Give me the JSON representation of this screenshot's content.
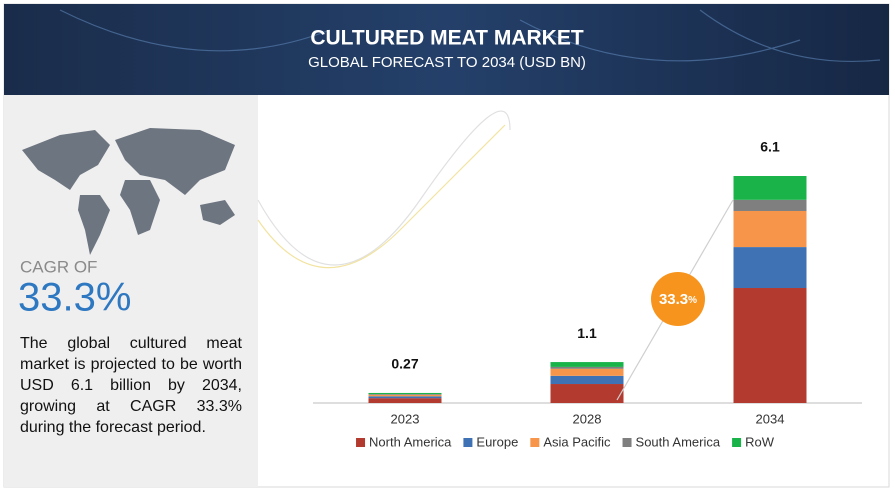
{
  "header": {
    "title": "CULTURED MEAT MARKET",
    "subtitle": "GLOBAL FORECAST TO 2034 (USD BN)"
  },
  "summary": {
    "cagr_label": "CAGR OF",
    "cagr_value": "33.3%",
    "text": "The global cultured meat market is projected to be worth USD 6.1 billion by 2034, growing at CAGR 33.3% during the forecast period."
  },
  "chart_data": {
    "type": "bar",
    "stacked": true,
    "categories": [
      "2023",
      "2028",
      "2034"
    ],
    "totals": [
      0.27,
      1.1,
      6.1
    ],
    "growth_bubble": {
      "value": "33.3",
      "unit": "%"
    },
    "series": [
      {
        "name": "North America",
        "color": "#b33a2f",
        "values": [
          0.13,
          0.51,
          3.09
        ]
      },
      {
        "name": "Europe",
        "color": "#3f72b5",
        "values": [
          0.05,
          0.22,
          1.1
        ]
      },
      {
        "name": "Asia Pacific",
        "color": "#f7964a",
        "values": [
          0.04,
          0.19,
          0.97
        ]
      },
      {
        "name": "South America",
        "color": "#7f7f7f",
        "values": [
          0.02,
          0.05,
          0.3
        ]
      },
      {
        "name": "RoW",
        "color": "#19b34a",
        "values": [
          0.03,
          0.13,
          0.64
        ]
      }
    ],
    "legend": "bottom"
  }
}
